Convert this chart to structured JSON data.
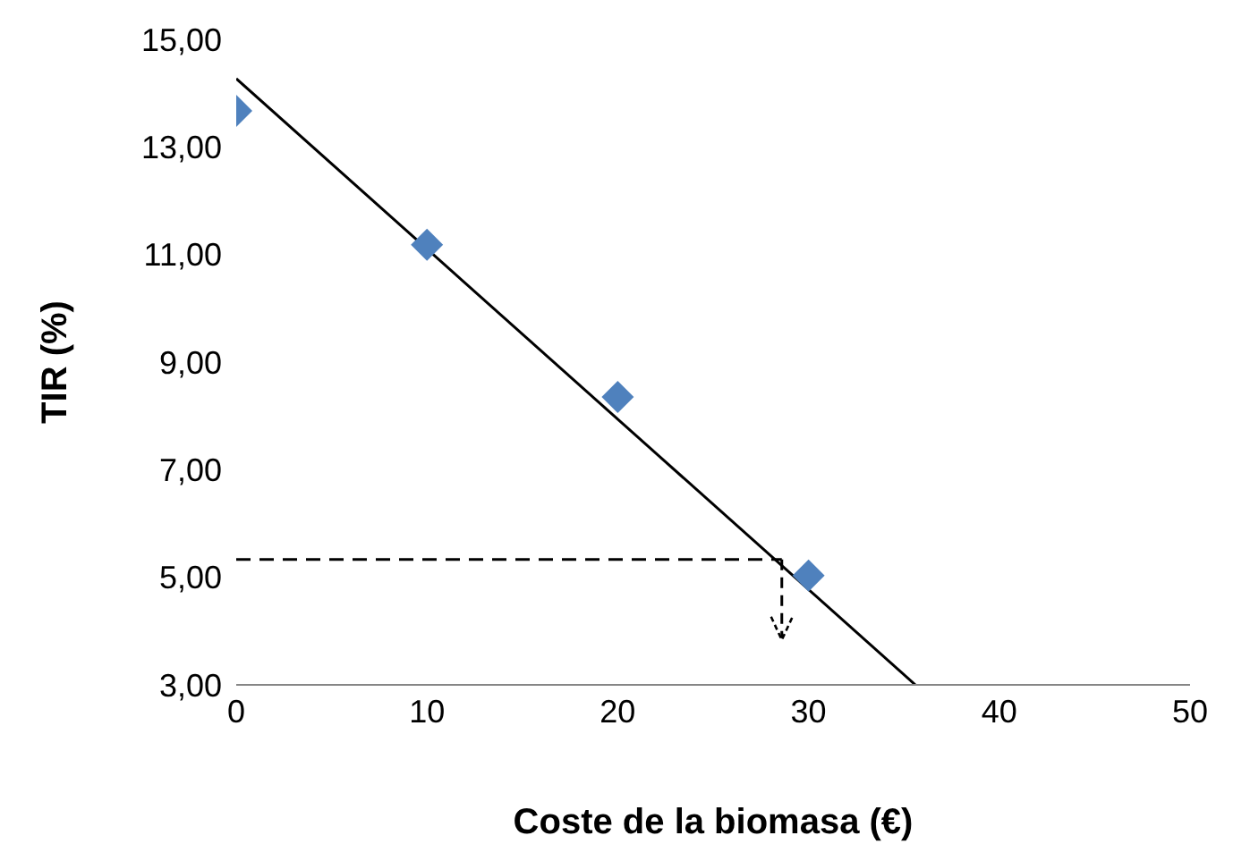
{
  "chart_data": {
    "type": "scatter",
    "xlabel": "Coste de la biomasa (€)",
    "ylabel": "TIR (%)",
    "xlim": [
      0,
      50
    ],
    "xticks": [
      0,
      10,
      20,
      30,
      40,
      50
    ],
    "ylim": [
      3,
      15
    ],
    "yticks": [
      {
        "value": 3,
        "label": "3,00"
      },
      {
        "value": 5,
        "label": "5,00"
      },
      {
        "value": 7,
        "label": "7,00"
      },
      {
        "value": 9,
        "label": "9,00"
      },
      {
        "value": 11,
        "label": "11,00"
      },
      {
        "value": 13,
        "label": "13,00"
      },
      {
        "value": 15,
        "label": "15,00"
      }
    ],
    "series": [
      {
        "color": "#4f81bd",
        "marker": "diamond",
        "x": [
          0,
          10,
          20,
          30
        ],
        "values": [
          13.67,
          11.18,
          8.35,
          5.03
        ]
      },
      {
        "type": "line",
        "color": "#000000",
        "line_style": "solid",
        "x": [
          0,
          35.6
        ],
        "values": [
          14.27,
          3.0
        ]
      },
      {
        "type": "line",
        "color": "#000000",
        "line_style": "dashed",
        "x": [
          0,
          28.6
        ],
        "values": [
          5.33,
          5.33
        ]
      }
    ]
  }
}
